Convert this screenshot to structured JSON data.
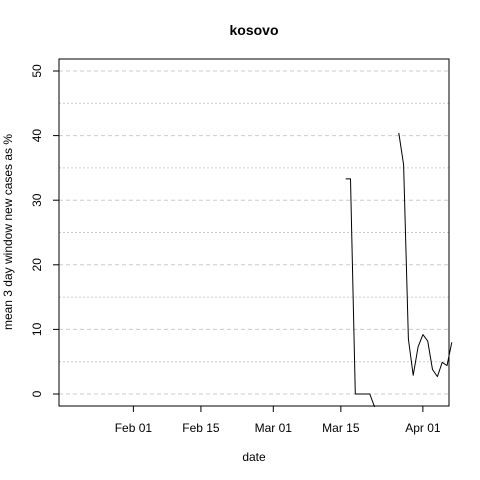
{
  "chart_data": {
    "type": "line",
    "title": "kosovo",
    "xlabel": "date",
    "ylabel": "mean  3  day window new cases as %",
    "ylim": [
      0,
      50
    ],
    "y_ticks": [
      0,
      10,
      20,
      30,
      40,
      50
    ],
    "x_range": [
      "2020-01-17",
      "2020-04-06"
    ],
    "x_ticks": [
      {
        "date": "2020-02-01",
        "label": "Feb 01"
      },
      {
        "date": "2020-02-15",
        "label": "Feb 15"
      },
      {
        "date": "2020-03-01",
        "label": "Mar 01"
      },
      {
        "date": "2020-03-15",
        "label": "Mar 15"
      },
      {
        "date": "2020-04-01",
        "label": "Apr 01"
      }
    ],
    "grid": "horizontal dashed",
    "series": [
      {
        "color": "#000000",
        "segments": [
          [
            {
              "x": "2020-03-16",
              "y": 33.3
            },
            {
              "x": "2020-03-17",
              "y": 33.3
            },
            {
              "x": "2020-03-18",
              "y": 0
            },
            {
              "x": "2020-03-19",
              "y": 0
            },
            {
              "x": "2020-03-20",
              "y": 0
            },
            {
              "x": "2020-03-21",
              "y": 0
            },
            {
              "x": "2020-03-22",
              "y": -2
            }
          ],
          [
            {
              "x": "2020-03-27",
              "y": 40.4
            },
            {
              "x": "2020-03-28",
              "y": 35.5
            },
            {
              "x": "2020-03-29",
              "y": 8.5
            },
            {
              "x": "2020-03-30",
              "y": 2.9
            },
            {
              "x": "2020-03-31",
              "y": 7.3
            },
            {
              "x": "2020-04-01",
              "y": 9.2
            },
            {
              "x": "2020-04-02",
              "y": 8.2
            },
            {
              "x": "2020-04-03",
              "y": 3.8
            },
            {
              "x": "2020-04-04",
              "y": 2.7
            },
            {
              "x": "2020-04-05",
              "y": 4.9
            },
            {
              "x": "2020-04-06",
              "y": 4.4
            },
            {
              "x": "2020-04-07",
              "y": 8.0
            }
          ]
        ]
      }
    ]
  }
}
